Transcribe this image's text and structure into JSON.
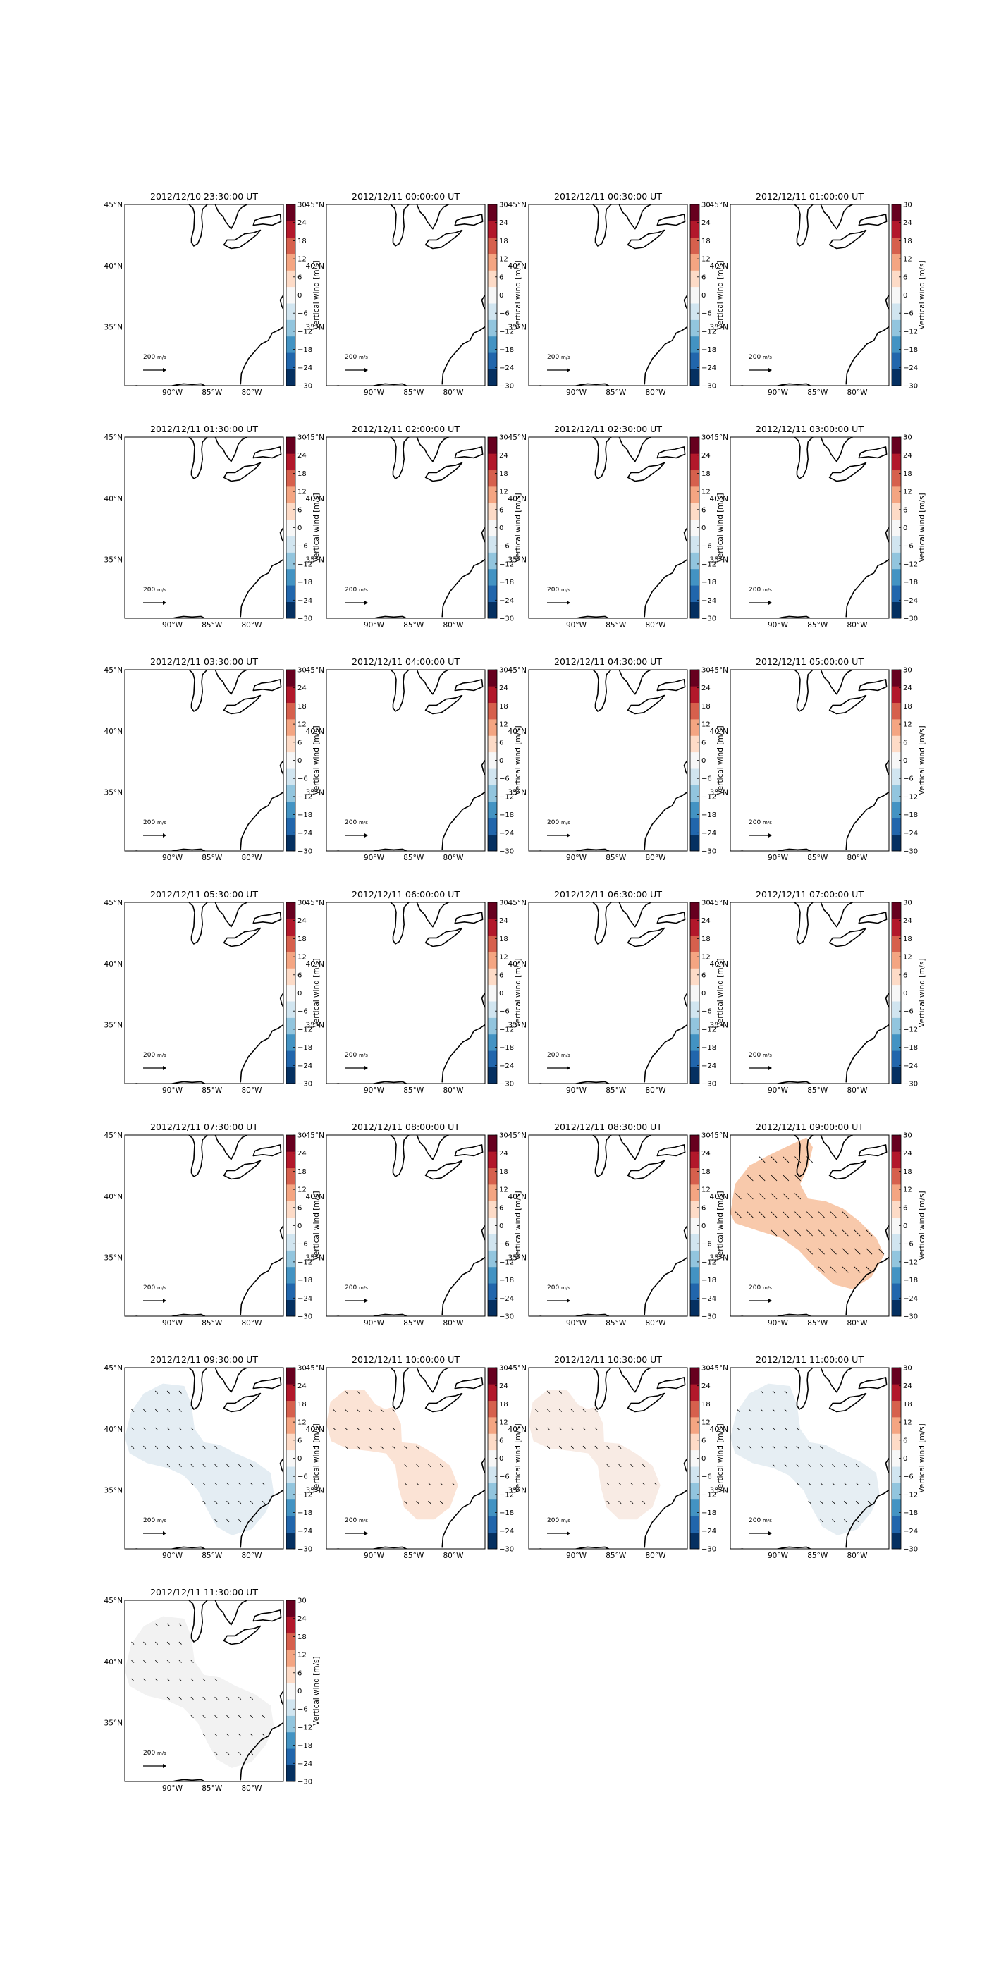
{
  "figure": {
    "colorbar": {
      "label": "Vertical wind [m/s]",
      "ticks": [
        30,
        24,
        18,
        12,
        6,
        0,
        -6,
        -12,
        -18,
        -24,
        -30
      ],
      "colors": [
        "#053061",
        "#2166ac",
        "#4393c3",
        "#92c5de",
        "#d1e5f0",
        "#f7f7f7",
        "#fddbc7",
        "#f4a582",
        "#d6604d",
        "#b2182b",
        "#67001f"
      ]
    },
    "axes": {
      "lat_labels": [
        "45°N",
        "40°N",
        "35°N"
      ],
      "lon_labels": [
        "90°W",
        "85°W",
        "80°W"
      ],
      "quiver_key": "200 ",
      "quiver_key_unit": "m/s"
    }
  },
  "chart_data": [
    {
      "type": "heatmap",
      "title": "2012/12/10 23:30:00 UT",
      "vertical_wind": null
    },
    {
      "type": "heatmap",
      "title": "2012/12/11 00:00:00 UT",
      "vertical_wind": null
    },
    {
      "type": "heatmap",
      "title": "2012/12/11 00:30:00 UT",
      "vertical_wind": null
    },
    {
      "type": "heatmap",
      "title": "2012/12/11 01:00:00 UT",
      "vertical_wind": null
    },
    {
      "type": "heatmap",
      "title": "2012/12/11 01:30:00 UT",
      "vertical_wind": null
    },
    {
      "type": "heatmap",
      "title": "2012/12/11 02:00:00 UT",
      "vertical_wind": null
    },
    {
      "type": "heatmap",
      "title": "2012/12/11 02:30:00 UT",
      "vertical_wind": null
    },
    {
      "type": "heatmap",
      "title": "2012/12/11 03:00:00 UT",
      "vertical_wind": null
    },
    {
      "type": "heatmap",
      "title": "2012/12/11 03:30:00 UT",
      "vertical_wind": null
    },
    {
      "type": "heatmap",
      "title": "2012/12/11 04:00:00 UT",
      "vertical_wind": null
    },
    {
      "type": "heatmap",
      "title": "2012/12/11 04:30:00 UT",
      "vertical_wind": null
    },
    {
      "type": "heatmap",
      "title": "2012/12/11 05:00:00 UT",
      "vertical_wind": null
    },
    {
      "type": "heatmap",
      "title": "2012/12/11 05:30:00 UT",
      "vertical_wind": null
    },
    {
      "type": "heatmap",
      "title": "2012/12/11 06:00:00 UT",
      "vertical_wind": null
    },
    {
      "type": "heatmap",
      "title": "2012/12/11 06:30:00 UT",
      "vertical_wind": null
    },
    {
      "type": "heatmap",
      "title": "2012/12/11 07:00:00 UT",
      "vertical_wind": null
    },
    {
      "type": "heatmap",
      "title": "2012/12/11 07:30:00 UT",
      "vertical_wind": null
    },
    {
      "type": "heatmap",
      "title": "2012/12/11 08:00:00 UT",
      "vertical_wind": null
    },
    {
      "type": "heatmap",
      "title": "2012/12/11 08:30:00 UT",
      "vertical_wind": null
    },
    {
      "type": "heatmap",
      "title": "2012/12/11 09:00:00 UT",
      "vertical_wind": 8,
      "field_color": "#f8c9ab"
    },
    {
      "type": "heatmap",
      "title": "2012/12/11 09:30:00 UT",
      "vertical_wind": -1,
      "field_color": "#e4edf3"
    },
    {
      "type": "heatmap",
      "title": "2012/12/11 10:00:00 UT",
      "vertical_wind": 2,
      "field_color": "#fbe3d5"
    },
    {
      "type": "heatmap",
      "title": "2012/12/11 10:30:00 UT",
      "vertical_wind": 1,
      "field_color": "#f8ebe4"
    },
    {
      "type": "heatmap",
      "title": "2012/12/11 11:00:00 UT",
      "vertical_wind": -1,
      "field_color": "#e6eef3"
    },
    {
      "type": "heatmap",
      "title": "2012/12/11 11:30:00 UT",
      "vertical_wind": 0,
      "field_color": "#f2f2f2"
    }
  ]
}
